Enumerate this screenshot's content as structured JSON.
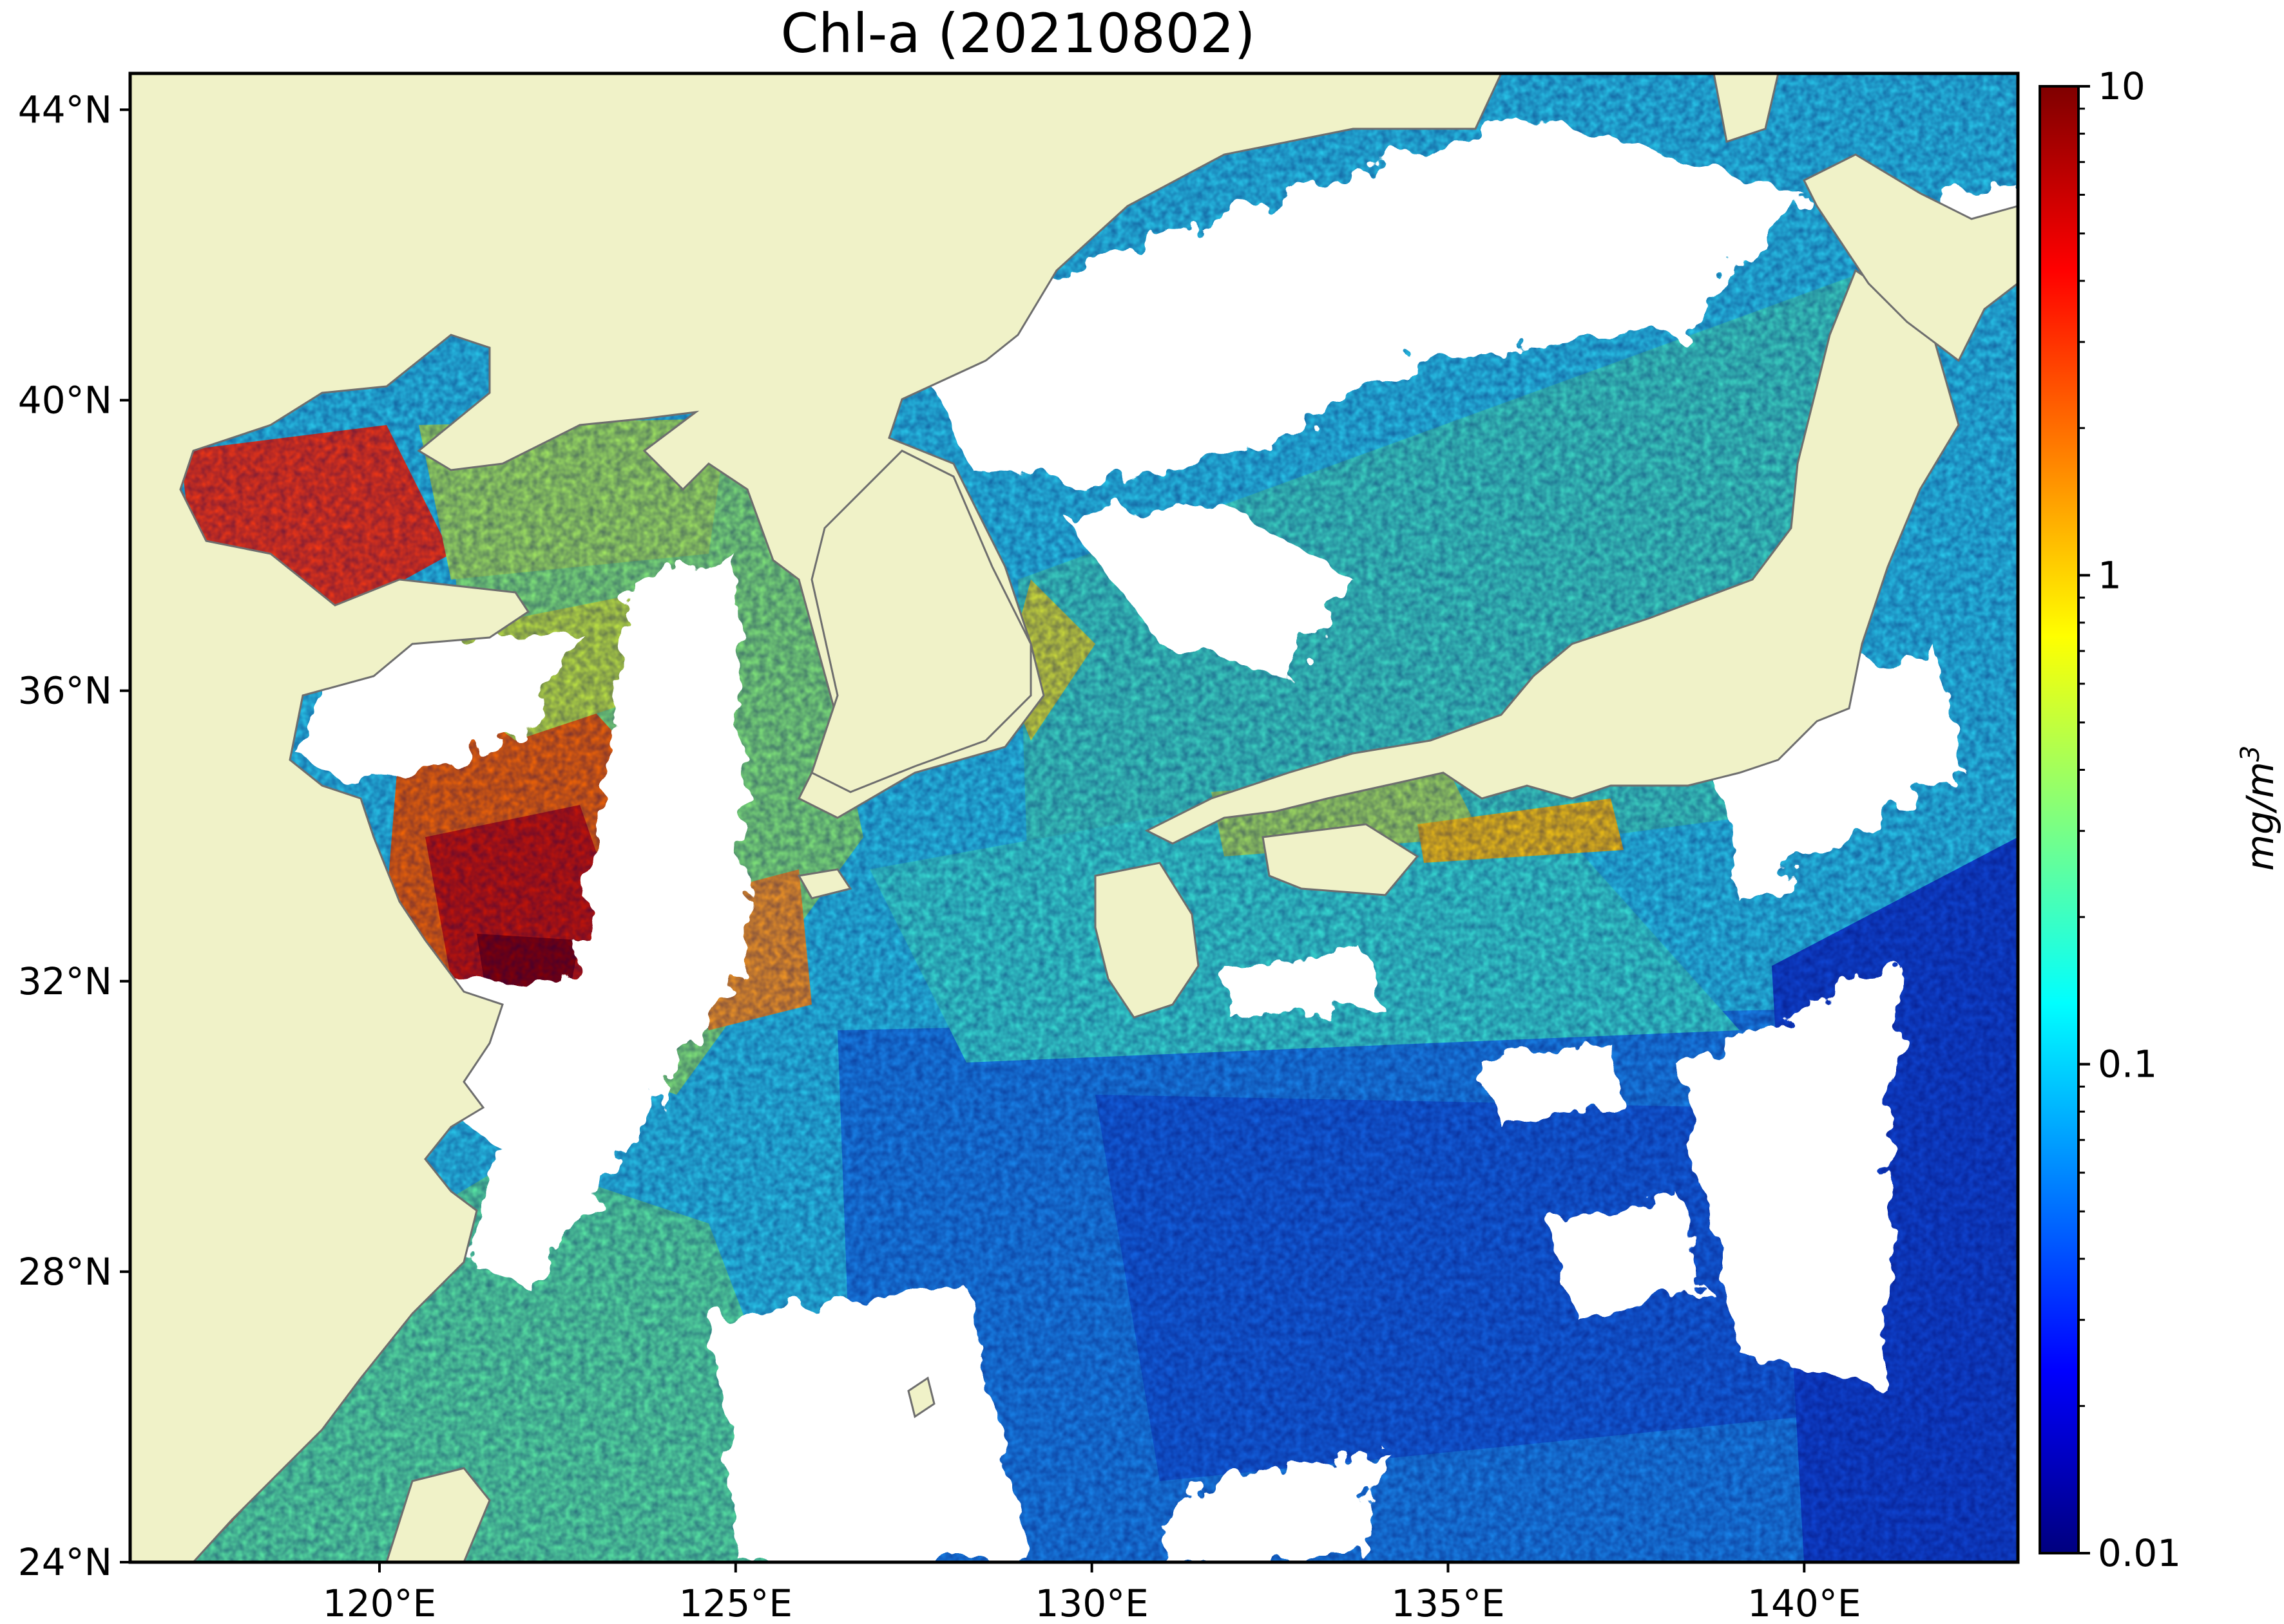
{
  "title": "Chl-a (20210802)",
  "chart_data": {
    "type": "heatmap",
    "title": "Chl-a (20210802)",
    "variable": "Chl-a",
    "date": "20210802",
    "x_axis": {
      "ticks": [
        120,
        125,
        130,
        135,
        140
      ],
      "tick_labels": [
        "120°E",
        "125°E",
        "130°E",
        "135°E",
        "140°E"
      ],
      "range": [
        116.5,
        143
      ]
    },
    "y_axis": {
      "ticks": [
        24,
        28,
        32,
        36,
        40,
        44
      ],
      "tick_labels": [
        "24°N",
        "28°N",
        "32°N",
        "36°N",
        "40°N",
        "44°N"
      ],
      "range": [
        24,
        44.5
      ]
    },
    "colorbar": {
      "label": "mg/m",
      "label_superscript": "3",
      "scale": "log",
      "range": [
        0.01,
        10
      ],
      "ticks": [
        10,
        1,
        0.1,
        0.01
      ],
      "tick_labels": [
        "10",
        "1",
        "0.1",
        "0.01"
      ],
      "colormap": "jet",
      "colors": [
        "#00007f",
        "#0000ff",
        "#007fff",
        "#00ffff",
        "#7fff7f",
        "#ffff00",
        "#ff7f00",
        "#ff0000",
        "#7f0000"
      ]
    },
    "land_color": "#f0f2c8",
    "no_data_color": "#ffffff",
    "coastline_color": "#6e6e6e"
  }
}
